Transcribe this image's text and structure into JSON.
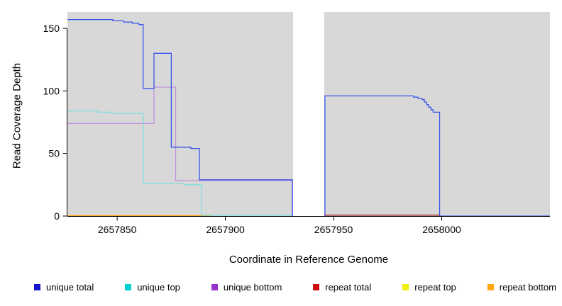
{
  "chart_data": {
    "type": "line",
    "subtype": "step-coverage-plot",
    "title": "",
    "xlabel": "Coordinate in Reference Genome",
    "ylabel": "Read Coverage Depth",
    "xlim": [
      2657827,
      2658050
    ],
    "ylim": [
      0,
      163
    ],
    "x_ticks": [
      2657850,
      2657900,
      2657950,
      2658000
    ],
    "y_ticks": [
      0,
      50,
      100,
      150
    ],
    "grid": false,
    "panel_color": "#d8d8d8",
    "gap_region": {
      "x_start": 2657931.3,
      "x_end": 2657945.7,
      "color": "#ffffff"
    },
    "legend_position": "bottom",
    "draw_order": [
      "repeat top",
      "repeat bottom",
      "unique bottom",
      "unique top",
      "unique total",
      "repeat total"
    ],
    "series": [
      {
        "name": "unique total",
        "color": "#1515cc",
        "line_color": "#3a55e8",
        "points": [
          [
            2657827,
            157
          ],
          [
            2657848,
            156
          ],
          [
            2657853,
            155
          ],
          [
            2657857,
            154
          ],
          [
            2657860,
            153
          ],
          [
            2657862,
            102
          ],
          [
            2657867,
            130
          ],
          [
            2657875,
            55
          ],
          [
            2657884,
            54
          ],
          [
            2657888,
            29
          ],
          [
            2657931,
            0
          ],
          [
            2657946,
            96
          ],
          [
            2657987,
            95
          ],
          [
            2657989,
            94
          ],
          [
            2657991,
            93
          ],
          [
            2657992,
            91
          ],
          [
            2657993,
            89
          ],
          [
            2657994,
            87
          ],
          [
            2657995,
            85
          ],
          [
            2657996,
            83
          ],
          [
            2657999,
            0
          ],
          [
            2658050,
            0
          ]
        ]
      },
      {
        "name": "unique top",
        "color": "#00ced1",
        "line_color": "#7fdede",
        "points": [
          [
            2657827,
            84
          ],
          [
            2657841,
            83
          ],
          [
            2657847,
            82
          ],
          [
            2657862,
            26
          ],
          [
            2657881,
            25
          ],
          [
            2657889,
            0.7
          ],
          [
            2657931,
            0.7
          ]
        ]
      },
      {
        "name": "unique bottom",
        "color": "#9932cc",
        "line_color": "#c092dc",
        "points": [
          [
            2657827,
            74
          ],
          [
            2657867,
            103
          ],
          [
            2657877,
            28.3
          ],
          [
            2657931,
            0
          ]
        ]
      },
      {
        "name": "repeat total",
        "color": "#cc1111",
        "line_color": "#a52a2a",
        "points": [
          [
            2657946,
            0.7
          ],
          [
            2657999,
            0.7
          ]
        ]
      },
      {
        "name": "repeat top",
        "color": "#efef10",
        "line_color": "#efef10",
        "points": [
          [
            2657827,
            0.3
          ],
          [
            2657893,
            0.3
          ]
        ]
      },
      {
        "name": "repeat bottom",
        "color": "#ffa510",
        "line_color": "#ffa510",
        "points": [
          [
            2657827,
            0.3
          ],
          [
            2657893,
            0.3
          ]
        ]
      }
    ]
  }
}
